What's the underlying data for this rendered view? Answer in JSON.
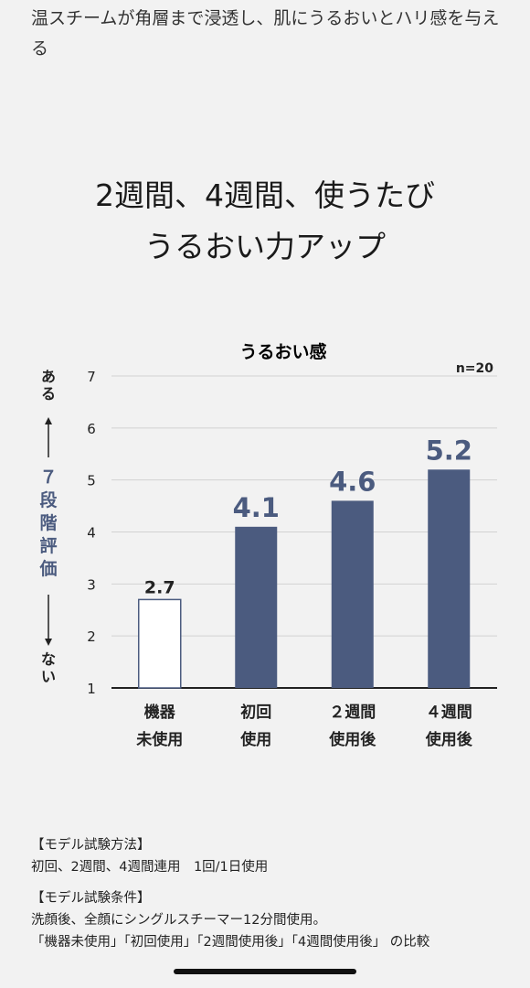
{
  "intro_text": "温スチームが角層まで浸透し、肌にうるおいとハリ感を与える",
  "headline": {
    "line1": "2週間、4週間、使うたび",
    "line2": "うるおい力アップ"
  },
  "chart_data": {
    "type": "bar",
    "title": "うるおい感",
    "sample_size": "n=20",
    "categories": [
      [
        "機器",
        "未使用"
      ],
      [
        "初回",
        "使用"
      ],
      [
        "２週間",
        "使用後"
      ],
      [
        "４週間",
        "使用後"
      ]
    ],
    "values": [
      2.7,
      4.1,
      4.6,
      5.2
    ],
    "value_labels": [
      "2.7",
      "4.1",
      "4.6",
      "5.2"
    ],
    "ylim": [
      1,
      7
    ],
    "yticks": [
      "1",
      "2",
      "3",
      "4",
      "5",
      "6",
      "7"
    ],
    "grid": true,
    "ylabel": {
      "top": "ある",
      "middle": "７段階評価",
      "bottom": "ない"
    },
    "colors": {
      "accent": "#4b5b7f",
      "baseline_fill": "#ffffff",
      "baseline_stroke": "#4b5b7f",
      "grid": "#d2d2d2"
    }
  },
  "notes": {
    "method_heading": "【モデル試験方法】",
    "method_text": "初回、2週間、4週間連用　1回/1日使用",
    "conditions_heading": "【モデル試験条件】",
    "conditions_text1": "洗顔後、全顔にシングルスチーマー12分間使用。",
    "conditions_text2": "「機器未使用」「初回使用」「2週間使用後」「4週間使用後」 の比較"
  }
}
